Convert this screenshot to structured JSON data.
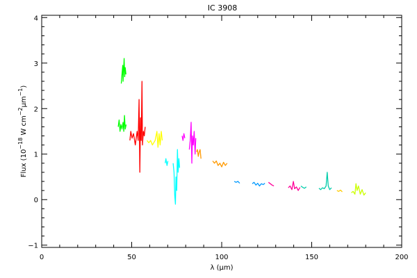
{
  "chart_data": {
    "type": "line",
    "title": "IC 3908",
    "xlabel": "λ (μm)",
    "ylabel": "Flux (10^-18 W cm^-2 μm^-1)",
    "xlim": [
      0,
      200
    ],
    "ylim": [
      -1.05,
      4.05
    ],
    "x_ticks": [
      0,
      50,
      100,
      150,
      200
    ],
    "y_ticks": [
      -1,
      0,
      1,
      2,
      3,
      4
    ],
    "grid": false,
    "legend": "none",
    "series": [
      {
        "color": "#00ff00",
        "points": [
          [
            44.2,
            2.55
          ],
          [
            44.6,
            2.75
          ],
          [
            45.0,
            2.95
          ],
          [
            45.2,
            2.6
          ],
          [
            45.5,
            2.85
          ],
          [
            45.8,
            3.1
          ],
          [
            46.1,
            2.7
          ],
          [
            46.4,
            2.9
          ],
          [
            46.8,
            2.75
          ]
        ]
      },
      {
        "color": "#00ff00",
        "points": [
          [
            42.5,
            1.6
          ],
          [
            43.0,
            1.75
          ],
          [
            43.5,
            1.5
          ],
          [
            44.0,
            1.65
          ],
          [
            44.6,
            1.55
          ],
          [
            45.2,
            1.7
          ],
          [
            45.6,
            1.5
          ],
          [
            46.0,
            1.85
          ],
          [
            46.4,
            1.55
          ],
          [
            46.9,
            1.65
          ]
        ]
      },
      {
        "color": "#ff0000",
        "points": [
          [
            49.0,
            1.3
          ],
          [
            49.5,
            1.5
          ],
          [
            50.2,
            1.35
          ],
          [
            51.0,
            1.45
          ],
          [
            52.0,
            1.2
          ],
          [
            53.0,
            1.5
          ],
          [
            53.6,
            1.3
          ],
          [
            54.1,
            2.2
          ],
          [
            54.5,
            0.6
          ],
          [
            54.9,
            1.8
          ],
          [
            55.3,
            1.3
          ],
          [
            55.7,
            2.6
          ],
          [
            56.0,
            1.2
          ],
          [
            56.5,
            1.5
          ],
          [
            57.0,
            1.4
          ],
          [
            57.5,
            1.6
          ]
        ]
      },
      {
        "color": "#ffff00",
        "points": [
          [
            58.5,
            1.3
          ],
          [
            59.5,
            1.25
          ],
          [
            60.5,
            1.3
          ],
          [
            61.5,
            1.2
          ],
          [
            63.0,
            1.3
          ],
          [
            64.0,
            1.5
          ],
          [
            64.6,
            1.15
          ],
          [
            65.2,
            1.45
          ],
          [
            65.8,
            1.2
          ],
          [
            66.4,
            1.5
          ],
          [
            67.0,
            1.3
          ]
        ]
      },
      {
        "color": "#00ffff",
        "points": [
          [
            68.6,
            0.8
          ],
          [
            69.0,
            0.9
          ],
          [
            69.6,
            0.75
          ],
          [
            70.1,
            0.85
          ]
        ]
      },
      {
        "color": "#00ffff",
        "points": [
          [
            73.0,
            0.8
          ],
          [
            73.5,
            0.6
          ],
          [
            73.9,
            0.1
          ],
          [
            74.3,
            -0.1
          ],
          [
            74.6,
            0.5
          ],
          [
            75.0,
            0.2
          ],
          [
            75.4,
            1.1
          ],
          [
            75.8,
            0.6
          ],
          [
            76.2,
            0.9
          ],
          [
            76.6,
            0.7
          ]
        ]
      },
      {
        "color": "#ff00ff",
        "points": [
          [
            78.0,
            1.4
          ],
          [
            78.5,
            1.3
          ],
          [
            79.0,
            1.45
          ],
          [
            79.5,
            1.35
          ]
        ]
      },
      {
        "color": "#ff00ff",
        "points": [
          [
            82.0,
            1.1
          ],
          [
            82.5,
            1.3
          ],
          [
            83.0,
            1.7
          ],
          [
            83.4,
            0.8
          ],
          [
            83.8,
            1.4
          ],
          [
            84.2,
            1.2
          ],
          [
            84.7,
            1.5
          ],
          [
            85.2,
            1.0
          ],
          [
            85.6,
            1.35
          ]
        ]
      },
      {
        "color": "#ff9900",
        "points": [
          [
            86.0,
            1.05
          ],
          [
            86.5,
            1.1
          ],
          [
            87.0,
            0.95
          ],
          [
            87.5,
            1.05
          ],
          [
            88.0,
            1.1
          ],
          [
            88.5,
            0.9
          ]
        ]
      },
      {
        "color": "#ff9900",
        "points": [
          [
            95.0,
            0.85
          ],
          [
            96.0,
            0.8
          ],
          [
            97.0,
            0.85
          ],
          [
            98.0,
            0.75
          ],
          [
            99.0,
            0.8
          ],
          [
            100.0,
            0.72
          ],
          [
            101.0,
            0.82
          ],
          [
            102.0,
            0.75
          ],
          [
            103.0,
            0.8
          ]
        ]
      },
      {
        "color": "#0099ff",
        "points": [
          [
            107.0,
            0.4
          ],
          [
            108.0,
            0.38
          ],
          [
            109.0,
            0.4
          ],
          [
            110.0,
            0.36
          ]
        ]
      },
      {
        "color": "#0099ff",
        "points": [
          [
            117.0,
            0.35
          ],
          [
            118.0,
            0.38
          ],
          [
            119.0,
            0.32
          ],
          [
            120.0,
            0.36
          ],
          [
            121.0,
            0.3
          ],
          [
            122.0,
            0.35
          ],
          [
            123.0,
            0.33
          ],
          [
            124.0,
            0.36
          ]
        ]
      },
      {
        "color": "#ff0099",
        "points": [
          [
            126.0,
            0.38
          ],
          [
            127.0,
            0.35
          ],
          [
            128.0,
            0.32
          ],
          [
            129.0,
            0.3
          ]
        ]
      },
      {
        "color": "#ff0099",
        "points": [
          [
            137.0,
            0.26
          ],
          [
            138.0,
            0.3
          ],
          [
            139.0,
            0.22
          ],
          [
            139.8,
            0.4
          ],
          [
            140.5,
            0.24
          ],
          [
            141.5,
            0.28
          ],
          [
            142.5,
            0.2
          ],
          [
            143.5,
            0.27
          ]
        ]
      },
      {
        "color": "#00ccaa",
        "points": [
          [
            144.0,
            0.3
          ],
          [
            145.0,
            0.27
          ],
          [
            146.0,
            0.25
          ],
          [
            147.0,
            0.28
          ]
        ]
      },
      {
        "color": "#00ccaa",
        "points": [
          [
            154.0,
            0.25
          ],
          [
            155.0,
            0.22
          ],
          [
            156.0,
            0.26
          ],
          [
            157.0,
            0.24
          ],
          [
            158.0,
            0.3
          ],
          [
            158.6,
            0.6
          ],
          [
            159.2,
            0.3
          ],
          [
            160.0,
            0.22
          ],
          [
            161.0,
            0.26
          ]
        ]
      },
      {
        "color": "#ffcc00",
        "points": [
          [
            164.0,
            0.2
          ],
          [
            165.0,
            0.18
          ],
          [
            166.0,
            0.21
          ],
          [
            167.0,
            0.17
          ]
        ]
      },
      {
        "color": "#ccff00",
        "points": [
          [
            172.0,
            0.15
          ],
          [
            173.0,
            0.18
          ],
          [
            174.0,
            0.12
          ],
          [
            174.6,
            0.35
          ],
          [
            175.2,
            0.2
          ],
          [
            176.0,
            0.3
          ],
          [
            177.0,
            0.12
          ],
          [
            178.0,
            0.22
          ],
          [
            179.0,
            0.1
          ],
          [
            180.0,
            0.15
          ]
        ]
      }
    ]
  }
}
